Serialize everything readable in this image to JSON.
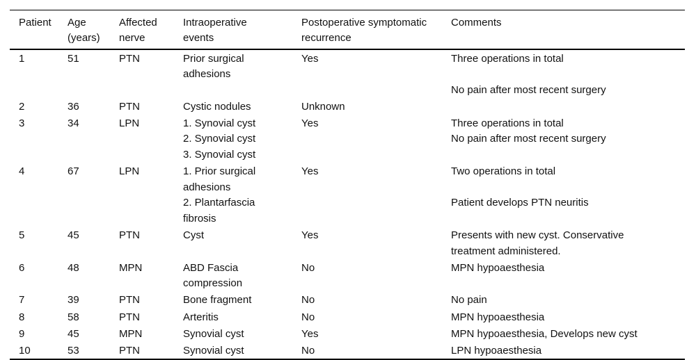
{
  "colors": {
    "text": "#111111",
    "rule": "#000000",
    "background": "#ffffff"
  },
  "table": {
    "columns": [
      {
        "id": "patient",
        "label": "Patient",
        "lines": [
          "Patient"
        ]
      },
      {
        "id": "age",
        "label": "Age (years)",
        "lines": [
          "Age",
          "(years)"
        ]
      },
      {
        "id": "nerve",
        "label": "Affected nerve",
        "lines": [
          "Affected",
          "nerve"
        ]
      },
      {
        "id": "events",
        "label": "Intraoperative events",
        "lines": [
          "Intraoperative",
          "events"
        ]
      },
      {
        "id": "recurrence",
        "label": "Postoperative symptomatic recurrence",
        "lines": [
          "Postoperative symptomatic",
          "recurrence"
        ]
      },
      {
        "id": "comments",
        "label": "Comments",
        "lines": [
          "Comments"
        ]
      }
    ],
    "rows": [
      {
        "patient": "1",
        "age": "51",
        "nerve": "PTN",
        "events": [
          "Prior surgical",
          "adhesions"
        ],
        "recurrence": "Yes",
        "comments": [
          "Three operations in total",
          "",
          "No pain after most recent surgery"
        ]
      },
      {
        "patient": "2",
        "age": "36",
        "nerve": "PTN",
        "events": [
          "Cystic nodules"
        ],
        "recurrence": "Unknown",
        "comments": []
      },
      {
        "patient": "3",
        "age": "34",
        "nerve": "LPN",
        "events": [
          "1. Synovial cyst",
          "2. Synovial cyst",
          "3. Synovial cyst"
        ],
        "recurrence": "Yes",
        "comments": [
          "Three operations in total",
          "No pain after most recent surgery"
        ]
      },
      {
        "patient": "4",
        "age": "67",
        "nerve": "LPN",
        "events": [
          "1. Prior surgical",
          "adhesions",
          "2. Plantarfascia",
          "fibrosis"
        ],
        "recurrence": "Yes",
        "comments": [
          "Two operations in total",
          "",
          "Patient develops PTN neuritis"
        ]
      },
      {
        "patient": "5",
        "age": "45",
        "nerve": "PTN",
        "events": [
          "Cyst"
        ],
        "recurrence": "Yes",
        "comments": [
          "Presents with new cyst. Conservative",
          "treatment administered."
        ]
      },
      {
        "patient": "6",
        "age": "48",
        "nerve": "MPN",
        "events": [
          "ABD Fascia",
          "compression"
        ],
        "recurrence": "No",
        "comments": [
          "MPN hypoaesthesia"
        ]
      },
      {
        "patient": "7",
        "age": "39",
        "nerve": "PTN",
        "events": [
          "Bone fragment"
        ],
        "recurrence": "No",
        "comments": [
          "No pain"
        ]
      },
      {
        "patient": "8",
        "age": "58",
        "nerve": "PTN",
        "events": [
          "Arteritis"
        ],
        "recurrence": "No",
        "comments": [
          "MPN hypoaesthesia"
        ]
      },
      {
        "patient": "9",
        "age": "45",
        "nerve": "MPN",
        "events": [
          "Synovial cyst"
        ],
        "recurrence": "Yes",
        "comments": [
          "MPN hypoaesthesia, Develops new cyst"
        ]
      },
      {
        "patient": "10",
        "age": "53",
        "nerve": "PTN",
        "events": [
          "Synovial cyst"
        ],
        "recurrence": "No",
        "comments": [
          "LPN hypoaesthesia"
        ]
      }
    ]
  }
}
